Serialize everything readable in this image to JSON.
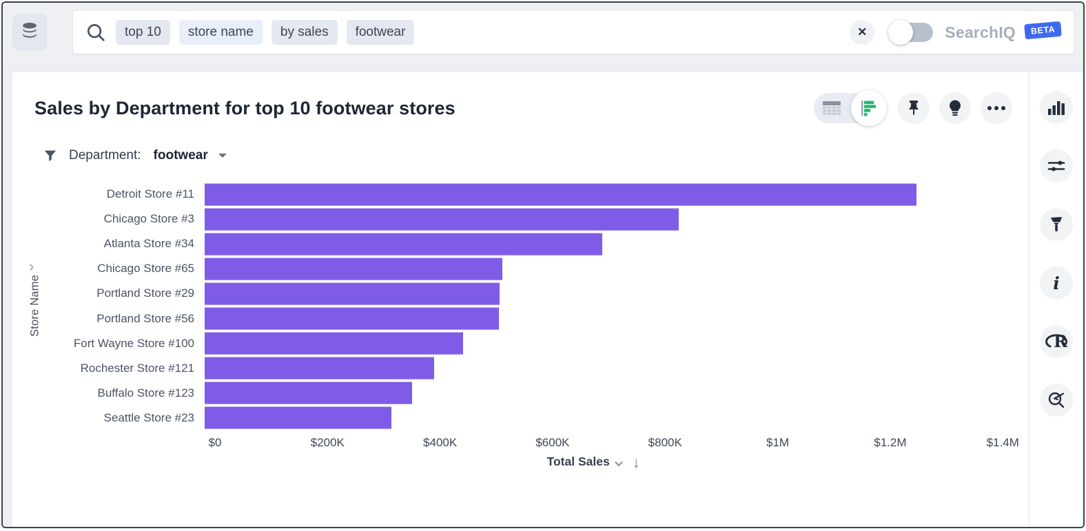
{
  "header": {
    "search": {
      "tokens": [
        {
          "text": "top 10",
          "variant": "default"
        },
        {
          "text": "store name",
          "variant": "active"
        },
        {
          "text": "by sales",
          "variant": "default"
        },
        {
          "text": "footwear",
          "variant": "default"
        }
      ]
    },
    "clear_glyph": "✕",
    "searchiq": {
      "label": "SearchIQ",
      "state": "off",
      "beta_label": "BETA"
    }
  },
  "answer": {
    "title": "Sales by Department for top 10 footwear stores",
    "filter": {
      "label": "Department:",
      "value": "footwear"
    },
    "view_switch": {
      "options": [
        "table",
        "chart"
      ],
      "selected": "chart"
    },
    "toolbar_buttons": [
      "pin",
      "insights",
      "more"
    ]
  },
  "chart_data": {
    "type": "bar",
    "orientation": "horizontal",
    "title": "Sales by Department for top 10 footwear stores",
    "categories": [
      "Detroit Store #11",
      "Chicago Store #3",
      "Atlanta Store #34",
      "Chicago Store #65",
      "Portland Store #29",
      "Portland Store #56",
      "Fort Wayne Store #100",
      "Rochester Store #121",
      "Buffalo Store #123",
      "Seattle Store #23"
    ],
    "values": [
      1249000,
      832000,
      698000,
      522000,
      518000,
      516000,
      453000,
      403000,
      364000,
      328000
    ],
    "xlabel": "Total Sales",
    "ylabel": "Store Name",
    "xlim": [
      0,
      1400000
    ],
    "x_ticks": [
      {
        "label": "$0",
        "value": 0
      },
      {
        "label": "$200K",
        "value": 200000
      },
      {
        "label": "$400K",
        "value": 400000
      },
      {
        "label": "$600K",
        "value": 600000
      },
      {
        "label": "$800K",
        "value": 800000
      },
      {
        "label": "$1M",
        "value": 1000000
      },
      {
        "label": "$1.2M",
        "value": 1200000
      },
      {
        "label": "$1.4M",
        "value": 1400000
      }
    ],
    "bar_color": "#7f5ce8",
    "sort": {
      "column": "Total Sales",
      "direction": "descending"
    },
    "grid": false,
    "legend": false
  },
  "sidebar_icons": [
    "column-chart",
    "sliders",
    "paintbrush",
    "info",
    "r-logo",
    "explore"
  ],
  "colors": {
    "bar": "#7f5ce8",
    "beta_badge": "#3f6af0",
    "toggle_green": "#27b870",
    "header_bg": "#eef0f4"
  }
}
